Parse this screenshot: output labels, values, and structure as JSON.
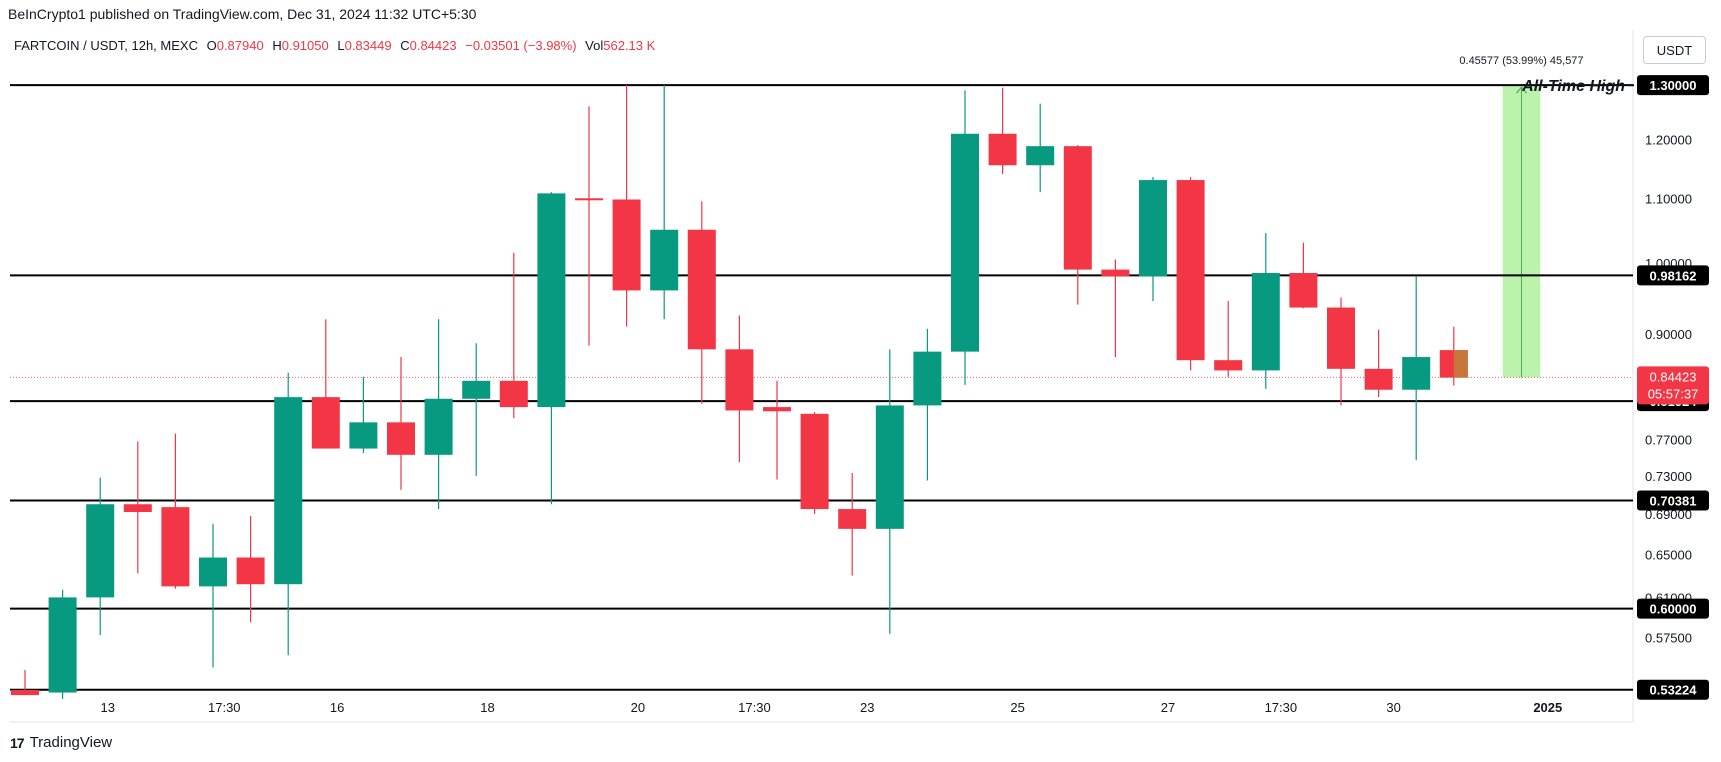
{
  "header": {
    "published": "BeInCrypto1 published on TradingView.com, Dec 31, 2024 11:32 UTC+5:30",
    "symbol": "FARTCOIN / USDT, 12h, MEXC",
    "open_label": "O",
    "open": "0.87940",
    "high_label": "H",
    "high": "0.91050",
    "low_label": "L",
    "low": "0.83449",
    "close_label": "C",
    "close": "0.84423",
    "change": "−0.03501 (−3.98%)",
    "vol_label": "Vol",
    "vol": "562.13 K",
    "currency": "USDT"
  },
  "footer": {
    "brand": "TradingView",
    "logo_glyph": "17"
  },
  "colors": {
    "up": "#089981",
    "down": "#f23645",
    "measure_fill": "#b5f2a3",
    "measure_line": "#4caf50"
  },
  "chart_data": {
    "type": "candlestick",
    "y_scale": "log",
    "ylim": [
      0.532,
      1.31
    ],
    "y_ticks": [
      {
        "value": 1.2,
        "label": "1.20000"
      },
      {
        "value": 1.1,
        "label": "1.10000"
      },
      {
        "value": 1.0,
        "label": "1.00000"
      },
      {
        "value": 0.9,
        "label": "0.90000"
      },
      {
        "value": 0.77,
        "label": "0.77000"
      },
      {
        "value": 0.73,
        "label": "0.73000"
      },
      {
        "value": 0.69,
        "label": "0.69000"
      },
      {
        "value": 0.65,
        "label": "0.65000"
      },
      {
        "value": 0.61,
        "label": "0.61000"
      },
      {
        "value": 0.575,
        "label": "0.57500"
      }
    ],
    "x_ticks": [
      {
        "index": 2.2,
        "label": "13"
      },
      {
        "index": 5.3,
        "label": "17:30"
      },
      {
        "index": 8.3,
        "label": "16"
      },
      {
        "index": 12.3,
        "label": "18"
      },
      {
        "index": 16.3,
        "label": "20"
      },
      {
        "index": 19.4,
        "label": "17:30"
      },
      {
        "index": 22.4,
        "label": "23"
      },
      {
        "index": 26.4,
        "label": "25"
      },
      {
        "index": 30.4,
        "label": "27"
      },
      {
        "index": 33.4,
        "label": "17:30"
      },
      {
        "index": 36.4,
        "label": "30"
      },
      {
        "index": 40.5,
        "label": "2025"
      }
    ],
    "candles": [
      {
        "o": 0.532,
        "h": 0.548,
        "l": 0.53,
        "c": 0.528
      },
      {
        "o": 0.53,
        "h": 0.617,
        "l": 0.525,
        "c": 0.61
      },
      {
        "o": 0.61,
        "h": 0.728,
        "l": 0.577,
        "c": 0.7
      },
      {
        "o": 0.7,
        "h": 0.768,
        "l": 0.632,
        "c": 0.692
      },
      {
        "o": 0.697,
        "h": 0.777,
        "l": 0.618,
        "c": 0.62
      },
      {
        "o": 0.62,
        "h": 0.68,
        "l": 0.55,
        "c": 0.647
      },
      {
        "o": 0.647,
        "h": 0.688,
        "l": 0.588,
        "c": 0.622
      },
      {
        "o": 0.622,
        "h": 0.85,
        "l": 0.56,
        "c": 0.82
      },
      {
        "o": 0.82,
        "h": 0.92,
        "l": 0.76,
        "c": 0.76
      },
      {
        "o": 0.76,
        "h": 0.845,
        "l": 0.755,
        "c": 0.79
      },
      {
        "o": 0.79,
        "h": 0.87,
        "l": 0.715,
        "c": 0.753
      },
      {
        "o": 0.753,
        "h": 0.92,
        "l": 0.695,
        "c": 0.818
      },
      {
        "o": 0.818,
        "h": 0.888,
        "l": 0.73,
        "c": 0.84
      },
      {
        "o": 0.84,
        "h": 1.015,
        "l": 0.795,
        "c": 0.808
      },
      {
        "o": 0.808,
        "h": 1.11,
        "l": 0.7,
        "c": 1.108
      },
      {
        "o": 1.1,
        "h": 1.26,
        "l": 0.885,
        "c": 1.098
      },
      {
        "o": 1.098,
        "h": 1.3,
        "l": 0.91,
        "c": 0.96
      },
      {
        "o": 0.96,
        "h": 1.3,
        "l": 0.92,
        "c": 1.05
      },
      {
        "o": 1.05,
        "h": 1.095,
        "l": 0.812,
        "c": 0.88
      },
      {
        "o": 0.88,
        "h": 0.925,
        "l": 0.745,
        "c": 0.804
      },
      {
        "o": 0.808,
        "h": 0.84,
        "l": 0.726,
        "c": 0.803
      },
      {
        "o": 0.8,
        "h": 0.802,
        "l": 0.69,
        "c": 0.695
      },
      {
        "o": 0.695,
        "h": 0.733,
        "l": 0.63,
        "c": 0.675
      },
      {
        "o": 0.675,
        "h": 0.88,
        "l": 0.578,
        "c": 0.81
      },
      {
        "o": 0.81,
        "h": 0.907,
        "l": 0.725,
        "c": 0.877
      },
      {
        "o": 0.877,
        "h": 1.29,
        "l": 0.835,
        "c": 1.21
      },
      {
        "o": 1.21,
        "h": 1.295,
        "l": 1.14,
        "c": 1.155
      },
      {
        "o": 1.155,
        "h": 1.265,
        "l": 1.11,
        "c": 1.188
      },
      {
        "o": 1.188,
        "h": 1.19,
        "l": 0.94,
        "c": 0.99
      },
      {
        "o": 0.99,
        "h": 1.005,
        "l": 0.87,
        "c": 0.98
      },
      {
        "o": 0.98,
        "h": 1.135,
        "l": 0.945,
        "c": 1.13
      },
      {
        "o": 1.13,
        "h": 1.135,
        "l": 0.853,
        "c": 0.866
      },
      {
        "o": 0.866,
        "h": 0.945,
        "l": 0.845,
        "c": 0.853
      },
      {
        "o": 0.853,
        "h": 1.045,
        "l": 0.83,
        "c": 0.985
      },
      {
        "o": 0.985,
        "h": 1.03,
        "l": 0.935,
        "c": 0.936
      },
      {
        "o": 0.936,
        "h": 0.95,
        "l": 0.81,
        "c": 0.855
      },
      {
        "o": 0.855,
        "h": 0.906,
        "l": 0.82,
        "c": 0.829
      },
      {
        "o": 0.829,
        "h": 0.98,
        "l": 0.747,
        "c": 0.87
      },
      {
        "o": 0.879,
        "h": 0.91,
        "l": 0.834,
        "c": 0.844
      }
    ],
    "levels": [
      {
        "value": 1.3,
        "label": "1.30000"
      },
      {
        "value": 0.98162,
        "label": "0.98162"
      },
      {
        "value": 0.81524,
        "label": "0.81524"
      },
      {
        "value": 0.70381,
        "label": "0.70381"
      },
      {
        "value": 0.6,
        "label": "0.60000"
      },
      {
        "value": 0.53224,
        "label": "0.53224"
      }
    ],
    "annotation": {
      "text": "All-Time High",
      "value": 1.3
    },
    "last_price": {
      "value": 0.84423,
      "label": "0.84423",
      "countdown": "05:57:37"
    },
    "measure": {
      "from": 0.84423,
      "to": 1.3,
      "index_start": 39.3,
      "index_end": 40.3,
      "label": "0.45577 (53.99%) 45,577"
    }
  }
}
